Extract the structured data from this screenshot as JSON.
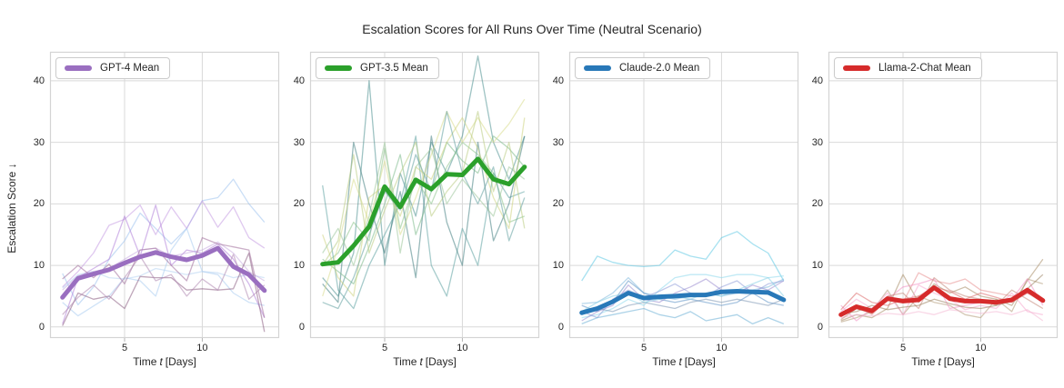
{
  "figure": {
    "xlabel_pre": "Time",
    "xlabel_var": "t",
    "xlabel_post": "[Days]"
  },
  "chart_data": {
    "type": "line",
    "title": "Escalation Scores for All Runs Over Time (Neutral Scenario)",
    "ylabel": "Escalation Score ↓",
    "xlabel": "Time t [Days]",
    "x": [
      1,
      2,
      3,
      4,
      5,
      6,
      7,
      8,
      9,
      10,
      11,
      12,
      13,
      14
    ],
    "xticks": [
      5,
      10
    ],
    "yticks": [
      0,
      10,
      20,
      30,
      40
    ],
    "xlim": [
      0.2,
      14.95
    ],
    "ylim": [
      -1.8,
      44.7
    ],
    "grid": true,
    "grid_color": "#d9d9d9",
    "legend_position": "upper left",
    "panels": [
      {
        "name": "GPT-4",
        "legend_label": "GPT-4 Mean",
        "mean_color": "#9a6fc0",
        "run_opacity": 0.55,
        "mean": [
          4.8,
          7.9,
          8.6,
          9.3,
          10.4,
          11.4,
          12.1,
          11.4,
          10.9,
          11.6,
          12.8,
          9.8,
          8.5,
          5.9
        ],
        "runs": [
          {
            "color": "#9fc2ee",
            "values": [
              8.7,
              3.6,
              6.5,
              11.0,
              14.0,
              18.5,
              16.0,
              13.5,
              16.0,
              20.5,
              21.0,
              24.0,
              20.0,
              17.0
            ]
          },
          {
            "color": "#a9ccf0",
            "values": [
              4.0,
              1.8,
              3.4,
              5.0,
              8.0,
              7.5,
              5.0,
              12.5,
              16.0,
              9.0,
              8.5,
              5.5,
              4.0,
              3.5
            ]
          },
          {
            "color": "#b6d3f2",
            "values": [
              6.3,
              8.5,
              9.0,
              8.0,
              7.8,
              8.3,
              9.5,
              9.0,
              8.5,
              9.0,
              8.8,
              8.0,
              8.5,
              8.0
            ]
          },
          {
            "color": "#c49ae2",
            "values": [
              6.5,
              9.0,
              12.0,
              16.5,
              17.5,
              19.8,
              15.0,
              19.5,
              16.0,
              20.5,
              16.2,
              19.5,
              14.5,
              12.8
            ]
          },
          {
            "color": "#b07fd8",
            "values": [
              0.5,
              8.0,
              9.5,
              11.0,
              18.0,
              11.5,
              19.8,
              10.0,
              12.5,
              12.0,
              13.5,
              11.0,
              7.0,
              1.5
            ]
          },
          {
            "color": "#c9ade0",
            "values": [
              6.0,
              8.3,
              9.0,
              9.5,
              11.0,
              12.5,
              12.8,
              11.5,
              12.0,
              12.5,
              13.8,
              12.0,
              9.0,
              7.5
            ]
          },
          {
            "color": "#a06d9a",
            "values": [
              7.8,
              10.0,
              8.0,
              10.2,
              7.0,
              12.5,
              12.8,
              10.0,
              7.5,
              14.5,
              13.5,
              13.0,
              12.5,
              1.5
            ]
          },
          {
            "color": "#8a5c82",
            "values": [
              0.2,
              5.5,
              4.5,
              5.0,
              3.0,
              8.2,
              8.0,
              8.0,
              6.0,
              6.2,
              6.0,
              6.2,
              12.0,
              -0.8
            ]
          },
          {
            "color": "#af86b0",
            "values": [
              2.0,
              4.8,
              6.8,
              4.5,
              8.0,
              11.5,
              7.5,
              8.5,
              5.0,
              7.8,
              6.0,
              11.8,
              4.5,
              6.8
            ]
          }
        ]
      },
      {
        "name": "GPT-3.5",
        "legend_label": "GPT-3.5 Mean",
        "mean_color": "#2ba02b",
        "run_opacity": 0.55,
        "mean": [
          10.2,
          10.5,
          13.2,
          16.3,
          22.8,
          19.5,
          23.9,
          22.4,
          24.8,
          24.7,
          27.3,
          24.0,
          23.2,
          26.0
        ],
        "runs": [
          {
            "color": "#4f9191",
            "values": [
              8.0,
              5.0,
              12.0,
              40.0,
              10.0,
              25.0,
              18.0,
              30.0,
              25.0,
              31.0,
              44.0,
              30.0,
              24.0,
              31.0
            ]
          },
          {
            "color": "#5fa3a3",
            "values": [
              23.0,
              6.0,
              3.0,
              10.0,
              15.0,
              20.0,
              31.0,
              10.0,
              5.0,
              16.0,
              10.0,
              25.0,
              21.0,
              22.0
            ]
          },
          {
            "color": "#447f82",
            "values": [
              7.0,
              4.0,
              30.0,
              20.0,
              12.0,
              22.0,
              8.0,
              31.0,
              17.0,
              10.0,
              30.0,
              14.0,
              20.0,
              31.0
            ]
          },
          {
            "color": "#8cc48c",
            "values": [
              10.0,
              12.0,
              17.0,
              14.0,
              29.0,
              16.0,
              24.0,
              20.0,
              26.0,
              30.0,
              28.0,
              25.0,
              17.0,
              18.0
            ]
          },
          {
            "color": "#7bb98a",
            "values": [
              11.0,
              9.0,
              7.0,
              13.0,
              20.0,
              28.0,
              15.0,
              22.0,
              30.0,
              27.0,
              25.0,
              31.0,
              29.0,
              26.0
            ]
          },
          {
            "color": "#d8dc8e",
            "values": [
              5.0,
              13.0,
              24.0,
              17.0,
              27.0,
              15.0,
              21.0,
              28.0,
              35.0,
              30.0,
              34.0,
              30.0,
              33.0,
              37.0
            ]
          },
          {
            "color": "#cdd37f",
            "values": [
              15.0,
              8.0,
              5.0,
              21.0,
              23.0,
              18.0,
              26.0,
              24.0,
              30.0,
              34.0,
              29.0,
              21.0,
              16.0,
              34.0
            ]
          },
          {
            "color": "#b9cc82",
            "values": [
              10.0,
              14.0,
              28.0,
              12.0,
              19.0,
              25.0,
              30.0,
              18.0,
              22.0,
              25.0,
              35.0,
              22.0,
              30.0,
              16.0
            ]
          },
          {
            "color": "#9cc79a",
            "values": [
              12.0,
              16.0,
              10.0,
              18.0,
              30.0,
              12.0,
              26.0,
              29.0,
              20.0,
              24.0,
              21.0,
              18.0,
              26.0,
              24.0
            ]
          },
          {
            "color": "#63a0a0",
            "values": [
              4.0,
              3.0,
              8.0,
              15.0,
              22.0,
              19.0,
              28.0,
              22.0,
              35.0,
              25.0,
              20.0,
              26.0,
              14.0,
              21.0
            ]
          }
        ]
      },
      {
        "name": "Claude-2.0",
        "legend_label": "Claude-2.0 Mean",
        "mean_color": "#2878b8",
        "run_opacity": 0.55,
        "mean": [
          2.3,
          3.0,
          4.1,
          5.5,
          4.7,
          4.9,
          5.0,
          5.2,
          5.2,
          5.7,
          5.8,
          5.7,
          5.6,
          4.4
        ],
        "runs": [
          {
            "color": "#5fc8e4",
            "values": [
              7.5,
              11.5,
              10.5,
              10.0,
              9.8,
              10.0,
              12.5,
              11.5,
              11.0,
              14.5,
              15.5,
              13.5,
              12.0,
              7.5
            ]
          },
          {
            "color": "#8ed9ec",
            "values": [
              1.5,
              2.0,
              3.0,
              4.5,
              3.5,
              6.0,
              8.0,
              8.5,
              8.5,
              8.0,
              8.5,
              8.5,
              8.0,
              8.3
            ]
          },
          {
            "color": "#7fb8dc",
            "values": [
              3.8,
              4.0,
              5.5,
              8.0,
              5.5,
              5.0,
              4.5,
              5.0,
              5.5,
              5.0,
              5.5,
              6.0,
              6.5,
              7.8
            ]
          },
          {
            "color": "#5e93c6",
            "values": [
              3.5,
              2.5,
              4.0,
              7.5,
              5.5,
              4.5,
              4.0,
              4.5,
              4.0,
              3.5,
              4.0,
              5.5,
              4.0,
              3.5
            ]
          },
          {
            "color": "#9b8cd0",
            "values": [
              1.0,
              2.5,
              3.5,
              6.8,
              4.5,
              4.0,
              5.5,
              6.5,
              7.8,
              6.0,
              5.5,
              6.8,
              6.0,
              7.5
            ]
          },
          {
            "color": "#8f9cd8",
            "values": [
              2.5,
              1.5,
              4.5,
              6.0,
              4.8,
              5.8,
              7.0,
              5.5,
              5.0,
              6.5,
              7.5,
              5.5,
              7.0,
              7.5
            ]
          },
          {
            "color": "#7e98b4",
            "values": [
              2.0,
              3.0,
              2.5,
              3.5,
              4.0,
              3.5,
              3.0,
              4.0,
              4.5,
              4.0,
              4.5,
              4.0,
              3.5,
              4.5
            ]
          },
          {
            "color": "#6aaed6",
            "values": [
              0.5,
              1.5,
              2.0,
              2.5,
              3.0,
              2.0,
              1.5,
              2.5,
              1.0,
              1.5,
              2.0,
              0.5,
              1.5,
              0.5
            ]
          },
          {
            "color": "#87cfe6",
            "values": [
              2.5,
              4.0,
              5.0,
              5.5,
              4.0,
              4.5,
              5.0,
              4.5,
              5.5,
              5.0,
              6.0,
              7.0,
              8.0,
              5.0
            ]
          }
        ]
      },
      {
        "name": "Llama-2-Chat",
        "legend_label": "Llama-2-Chat Mean",
        "mean_color": "#d62b2b",
        "run_opacity": 0.55,
        "mean": [
          2.0,
          3.3,
          2.6,
          4.6,
          4.2,
          4.4,
          6.4,
          4.6,
          4.2,
          4.2,
          4.0,
          4.4,
          6.0,
          4.3
        ],
        "runs": [
          {
            "color": "#e89090",
            "values": [
              2.0,
              3.5,
              2.0,
              4.5,
              4.0,
              8.8,
              7.5,
              7.0,
              7.8,
              6.0,
              5.5,
              5.0,
              5.5,
              4.0
            ]
          },
          {
            "color": "#a88d66",
            "values": [
              1.0,
              2.0,
              1.5,
              3.0,
              8.5,
              4.0,
              7.0,
              5.5,
              6.5,
              5.0,
              4.5,
              3.5,
              7.5,
              11.0
            ]
          },
          {
            "color": "#b39a78",
            "values": [
              0.8,
              1.5,
              2.5,
              6.0,
              2.0,
              5.0,
              4.0,
              3.5,
              2.0,
              1.5,
              4.5,
              2.5,
              7.8,
              7.0
            ]
          },
          {
            "color": "#f392c4",
            "values": [
              3.5,
              1.0,
              3.0,
              4.5,
              6.5,
              7.0,
              7.8,
              3.0,
              3.5,
              4.0,
              3.8,
              4.5,
              7.8,
              3.5
            ]
          },
          {
            "color": "#f6a8ce",
            "values": [
              2.5,
              4.5,
              3.0,
              5.5,
              2.0,
              6.8,
              5.5,
              4.5,
              2.8,
              3.5,
              3.0,
              5.5,
              2.5,
              2.0
            ]
          },
          {
            "color": "#f4b8d4",
            "values": [
              1.5,
              2.0,
              1.8,
              2.2,
              2.0,
              2.5,
              2.0,
              2.8,
              2.5,
              2.2,
              2.5,
              2.0,
              2.8,
              1.0
            ]
          },
          {
            "color": "#dd6a6a",
            "values": [
              2.8,
              5.5,
              4.0,
              3.5,
              4.5,
              5.0,
              6.5,
              5.8,
              4.5,
              5.5,
              4.8,
              4.0,
              5.5,
              4.5
            ]
          },
          {
            "color": "#c4887a",
            "values": [
              1.2,
              3.0,
              2.2,
              5.0,
              5.5,
              3.0,
              8.0,
              6.0,
              5.0,
              4.5,
              3.5,
              6.0,
              4.5,
              3.0
            ]
          },
          {
            "color": "#9a8460",
            "values": [
              2.2,
              2.5,
              3.5,
              2.8,
              3.2,
              3.5,
              4.5,
              3.8,
              3.2,
              3.0,
              3.5,
              4.2,
              6.2,
              8.5
            ]
          }
        ]
      }
    ]
  }
}
